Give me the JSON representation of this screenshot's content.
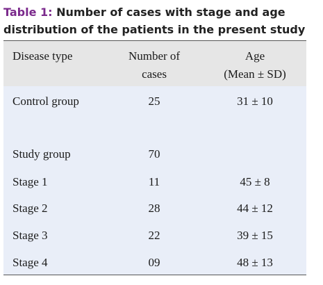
{
  "title": {
    "label": "Table 1:",
    "lines": [
      "Number of cases with stage and age",
      "distribution of the patients in the present study"
    ]
  },
  "table": {
    "header": [
      [
        "Disease type"
      ],
      [
        "Number of",
        "cases"
      ],
      [
        "Age",
        "(Mean ± SD)"
      ]
    ],
    "rows": [
      [
        "Control group",
        "25",
        "31 ± 10"
      ],
      [
        "Study group",
        "70"
      ],
      [
        "Stage 1",
        "11",
        "45 ± 8"
      ],
      [
        "Stage 2",
        "28",
        "44 ± 12"
      ],
      [
        "Stage 3",
        "22",
        "39 ± 15"
      ],
      [
        "Stage 4",
        "09",
        "48 ± 13"
      ]
    ]
  }
}
